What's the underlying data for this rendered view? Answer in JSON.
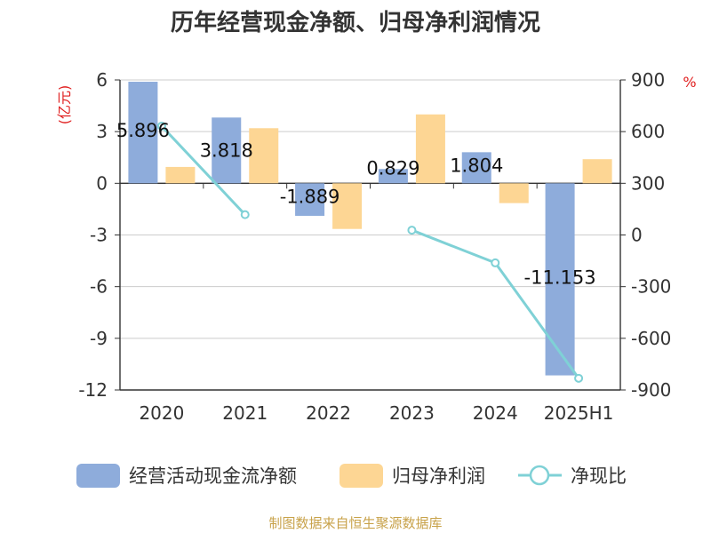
{
  "chart_data": {
    "type": "bar",
    "title": "历年经营现金净额、归母净利润情况",
    "categories": [
      "2020",
      "2021",
      "2022",
      "2023",
      "2024",
      "2025H1"
    ],
    "y_left": {
      "unit": "(亿元)",
      "ylim": [
        -12,
        6
      ],
      "ticks": [
        "6",
        "3",
        "0",
        "-3",
        "-6",
        "-9",
        "-12"
      ]
    },
    "y_right": {
      "unit": "%",
      "ylim": [
        -900,
        900
      ],
      "ticks": [
        "900",
        "600",
        "300",
        "0",
        "-300",
        "-600",
        "-900"
      ]
    },
    "series": [
      {
        "name": "经营活动现金流净额",
        "type": "bar",
        "axis": "left",
        "color": "#8eacdb",
        "values": [
          5.896,
          3.818,
          -1.889,
          0.829,
          1.804,
          -11.153
        ],
        "labels": [
          "5.896",
          "3.818",
          "-1.889",
          "0.829",
          "1.804",
          "-11.153"
        ]
      },
      {
        "name": "归母净利润",
        "type": "bar",
        "axis": "left",
        "color": "#fdd694",
        "values": [
          0.95,
          3.2,
          -2.65,
          4.0,
          -1.15,
          1.4
        ]
      },
      {
        "name": "净现比",
        "type": "line",
        "axis": "right",
        "color": "#7fd1d6",
        "values": [
          632,
          118,
          null,
          28,
          -162,
          -832
        ]
      }
    ],
    "grid": true,
    "legend_position": "bottom"
  },
  "footer": {
    "source": "制图数据来自恒生聚源数据库"
  }
}
